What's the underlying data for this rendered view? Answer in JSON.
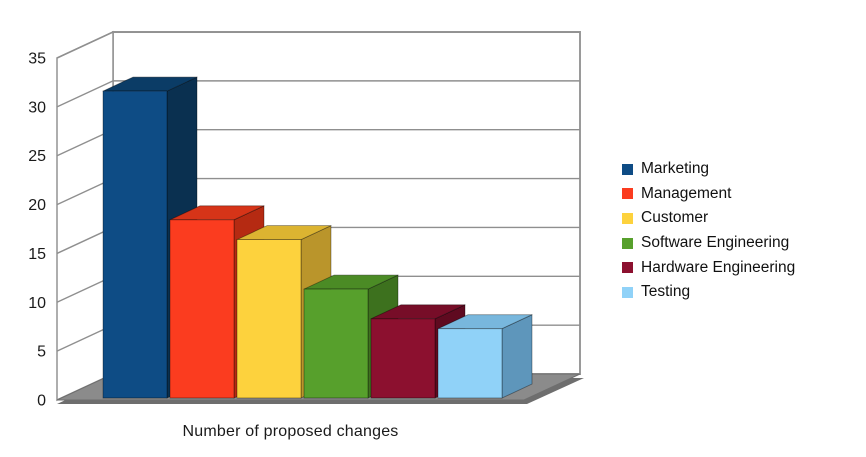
{
  "chart_data": {
    "type": "bar",
    "projection": "3d",
    "title": "",
    "xlabel": "Number of proposed changes",
    "ylabel": "",
    "ylim": [
      0,
      35
    ],
    "yticks": [
      0,
      5,
      10,
      15,
      20,
      25,
      30,
      35
    ],
    "grid": true,
    "legend_position": "right",
    "background": "#ffffff",
    "categories": [
      "Marketing",
      "Management",
      "Customer",
      "Software Engineering",
      "Hardware Engineering",
      "Testing"
    ],
    "series": [
      {
        "name": "Marketing",
        "value": 31,
        "color": "#0e4c85",
        "side_color": "#0a3050",
        "top_color": "#0b3c66"
      },
      {
        "name": "Management",
        "value": 18,
        "color": "#fb3c1f",
        "side_color": "#b52a12",
        "top_color": "#d63418"
      },
      {
        "name": "Customer",
        "value": 16,
        "color": "#fdd23d",
        "side_color": "#ba952b",
        "top_color": "#dcb431"
      },
      {
        "name": "Software Engineering",
        "value": 11,
        "color": "#57a02c",
        "side_color": "#3d711e",
        "top_color": "#4b8b25"
      },
      {
        "name": "Hardware Engineering",
        "value": 8,
        "color": "#8c102f",
        "side_color": "#5f0a20",
        "top_color": "#770d28"
      },
      {
        "name": "Testing",
        "value": 7,
        "color": "#90d2f8",
        "side_color": "#5e96bb",
        "top_color": "#78b7dd"
      }
    ],
    "style_colors": {
      "grid": "#8f8f8f",
      "wall_stroke": "#9a9a9a",
      "wall_fill": "#ffffff",
      "floor": "#8b8b8b",
      "floor_edge": "#6e6e6e",
      "tick_text": "#1a1a1a"
    }
  }
}
